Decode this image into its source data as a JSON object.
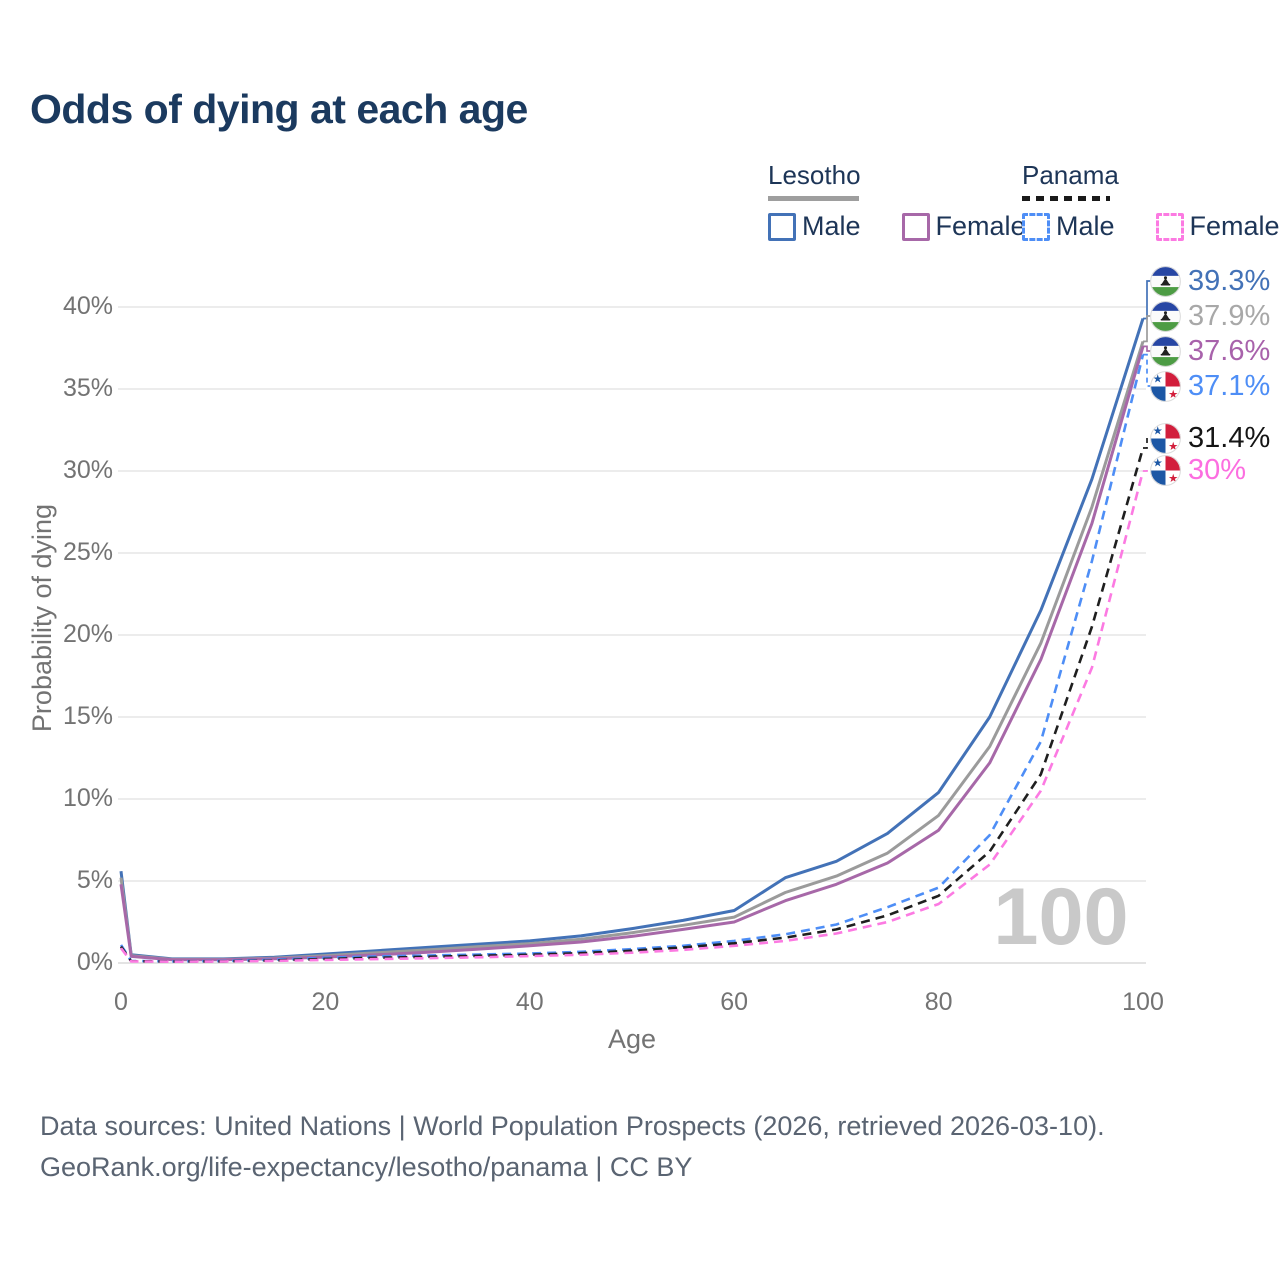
{
  "title": "Odds of dying at each age",
  "legend": {
    "groups": [
      {
        "name": "Lesotho",
        "line_style": "solid",
        "rule_color": "#9e9e9e",
        "items": [
          {
            "label": "Male",
            "color": "#4372b7",
            "dashed": false
          },
          {
            "label": "Female",
            "color": "#a768a8",
            "dashed": false
          }
        ]
      },
      {
        "name": "Panama",
        "line_style": "dashed",
        "rule_color": "#1a1a1a",
        "items": [
          {
            "label": "Male",
            "color": "#4e8ef6",
            "dashed": true
          },
          {
            "label": "Female",
            "color": "#fc7ae2",
            "dashed": true
          }
        ]
      }
    ]
  },
  "chart_data": {
    "type": "line",
    "title": "Odds of dying at each age",
    "xlabel": "Age",
    "ylabel": "Probability of dying",
    "xlim": [
      0,
      100
    ],
    "ylim": [
      0,
      41
    ],
    "xticks": [
      0,
      20,
      40,
      60,
      80,
      100
    ],
    "yticks_percent": [
      0,
      5,
      10,
      15,
      20,
      25,
      30,
      35,
      40
    ],
    "grid": "horizontal",
    "legend_position": "top-right",
    "watermark": "100",
    "x": [
      0,
      1,
      5,
      10,
      15,
      20,
      25,
      30,
      35,
      40,
      45,
      50,
      55,
      60,
      65,
      70,
      75,
      80,
      85,
      90,
      95,
      100
    ],
    "series": [
      {
        "name": "Lesotho Male",
        "country": "Lesotho",
        "sex": "male",
        "color": "#4372b7",
        "dashed": false,
        "flag": "lesotho",
        "end_label": "39.3%",
        "label_color": "#4372b7",
        "values": [
          5.6,
          0.5,
          0.25,
          0.25,
          0.35,
          0.55,
          0.75,
          0.95,
          1.15,
          1.35,
          1.65,
          2.1,
          2.6,
          3.2,
          5.2,
          6.2,
          7.9,
          10.4,
          15.0,
          21.5,
          29.5,
          39.3
        ]
      },
      {
        "name": "Lesotho Both sexes",
        "country": "Lesotho",
        "sex": "both",
        "color": "#9b9b9b",
        "dashed": false,
        "flag": "lesotho",
        "end_label": "37.9%",
        "label_color": "#a8a8a8",
        "values": [
          5.2,
          0.45,
          0.22,
          0.22,
          0.3,
          0.45,
          0.62,
          0.8,
          1.0,
          1.18,
          1.45,
          1.85,
          2.3,
          2.8,
          4.3,
          5.3,
          6.7,
          9.0,
          13.2,
          19.5,
          27.8,
          37.9
        ]
      },
      {
        "name": "Lesotho Female",
        "country": "Lesotho",
        "sex": "female",
        "color": "#a768a8",
        "dashed": false,
        "flag": "lesotho",
        "end_label": "37.6%",
        "label_color": "#a862ab",
        "values": [
          4.8,
          0.4,
          0.2,
          0.2,
          0.26,
          0.36,
          0.5,
          0.65,
          0.85,
          1.05,
          1.28,
          1.62,
          2.05,
          2.5,
          3.8,
          4.8,
          6.1,
          8.1,
          12.2,
          18.5,
          26.8,
          37.6
        ]
      },
      {
        "name": "Panama Male",
        "country": "Panama",
        "sex": "male",
        "color": "#4e8ef6",
        "dashed": true,
        "flag": "panama",
        "end_label": "37.1%",
        "label_color": "#4e8ef6",
        "values": [
          1.1,
          0.12,
          0.1,
          0.12,
          0.2,
          0.32,
          0.4,
          0.46,
          0.52,
          0.58,
          0.68,
          0.85,
          1.05,
          1.35,
          1.75,
          2.35,
          3.4,
          4.6,
          7.8,
          13.5,
          24.5,
          37.1
        ]
      },
      {
        "name": "Panama Both sexes",
        "country": "Panama",
        "sex": "both",
        "color": "#1f1f1f",
        "dashed": true,
        "flag": "panama",
        "end_label": "31.4%",
        "label_color": "#151515",
        "values": [
          1.0,
          0.11,
          0.09,
          0.1,
          0.16,
          0.25,
          0.32,
          0.38,
          0.44,
          0.5,
          0.6,
          0.75,
          0.95,
          1.2,
          1.55,
          2.05,
          2.9,
          4.1,
          6.8,
          11.5,
          20.5,
          31.4
        ]
      },
      {
        "name": "Panama Female",
        "country": "Panama",
        "sex": "female",
        "color": "#fc7ae2",
        "dashed": true,
        "flag": "panama",
        "end_label": "30%",
        "label_color": "#fc6ee0",
        "values": [
          0.9,
          0.1,
          0.08,
          0.09,
          0.13,
          0.19,
          0.24,
          0.29,
          0.35,
          0.42,
          0.5,
          0.63,
          0.8,
          1.05,
          1.35,
          1.8,
          2.5,
          3.6,
          6.0,
          10.5,
          18.0,
          30.0
        ]
      }
    ]
  },
  "footer": {
    "line1": "Data sources: United Nations | World Population Prospects (2026, retrieved 2026-03-10).",
    "line2": "GeoRank.org/life-expectancy/lesotho/panama | CC BY"
  }
}
